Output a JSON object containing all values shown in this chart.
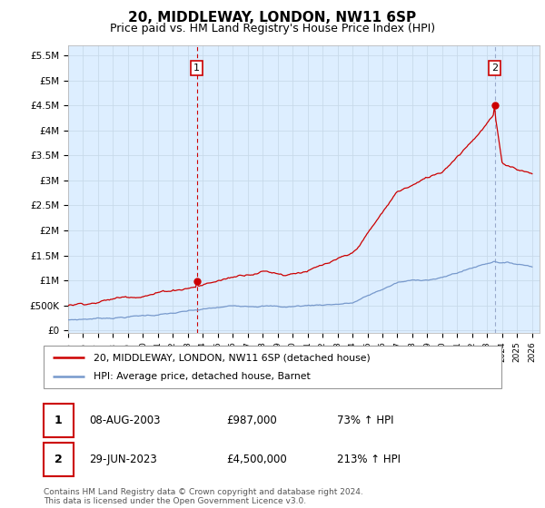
{
  "title": "20, MIDDLEWAY, LONDON, NW11 6SP",
  "subtitle": "Price paid vs. HM Land Registry's House Price Index (HPI)",
  "ylabel_ticks": [
    "£0",
    "£500K",
    "£1M",
    "£1.5M",
    "£2M",
    "£2.5M",
    "£3M",
    "£3.5M",
    "£4M",
    "£4.5M",
    "£5M",
    "£5.5M"
  ],
  "ytick_values": [
    0,
    500000,
    1000000,
    1500000,
    2000000,
    2500000,
    3000000,
    3500000,
    4000000,
    4500000,
    5000000,
    5500000
  ],
  "ylim": [
    0,
    5700000
  ],
  "xlim_start": 1995,
  "xlim_end": 2026.5,
  "xtick_years": [
    1995,
    1996,
    1997,
    1998,
    1999,
    2000,
    2001,
    2002,
    2003,
    2004,
    2005,
    2006,
    2007,
    2008,
    2009,
    2010,
    2011,
    2012,
    2013,
    2014,
    2015,
    2016,
    2017,
    2018,
    2019,
    2020,
    2021,
    2022,
    2023,
    2024,
    2025,
    2026
  ],
  "hpi_color": "#7799cc",
  "price_color": "#cc0000",
  "vline1_color": "#cc0000",
  "vline2_color": "#99aacc",
  "marker1_year": 2003.6,
  "marker1_value": 987000,
  "marker2_year": 2023.5,
  "marker2_value": 4500000,
  "legend_line1": "20, MIDDLEWAY, LONDON, NW11 6SP (detached house)",
  "legend_line2": "HPI: Average price, detached house, Barnet",
  "table_row1_num": "1",
  "table_row1_date": "08-AUG-2003",
  "table_row1_price": "£987,000",
  "table_row1_hpi": "73% ↑ HPI",
  "table_row2_num": "2",
  "table_row2_date": "29-JUN-2023",
  "table_row2_price": "£4,500,000",
  "table_row2_hpi": "213% ↑ HPI",
  "footer": "Contains HM Land Registry data © Crown copyright and database right 2024.\nThis data is licensed under the Open Government Licence v3.0.",
  "background_color": "#ffffff",
  "grid_color": "#c8daea",
  "chart_bg": "#ddeeff",
  "title_fontsize": 11,
  "subtitle_fontsize": 9
}
